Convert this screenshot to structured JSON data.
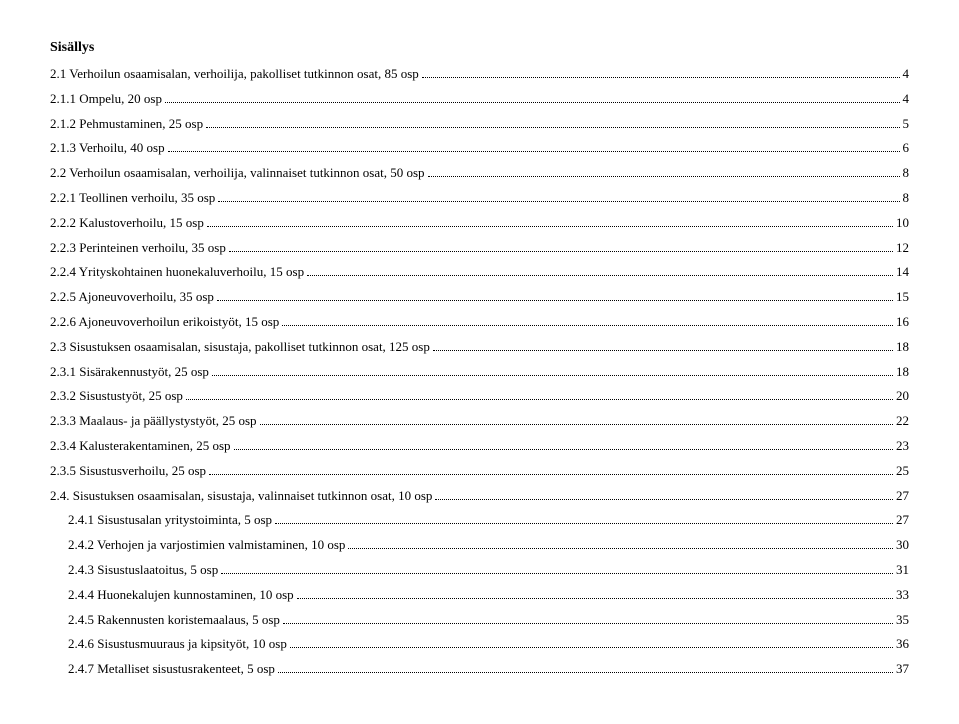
{
  "heading": "Sisällys",
  "toc": [
    {
      "label": "2.1 Verhoilun osaamisalan, verhoilija, pakolliset tutkinnon osat, 85 osp",
      "page": "4",
      "indent": 0
    },
    {
      "label": "2.1.1 Ompelu, 20 osp",
      "page": "4",
      "indent": 0
    },
    {
      "label": "2.1.2 Pehmustaminen, 25 osp",
      "page": "5",
      "indent": 0
    },
    {
      "label": "2.1.3 Verhoilu, 40 osp",
      "page": "6",
      "indent": 0
    },
    {
      "label": "2.2 Verhoilun osaamisalan, verhoilija, valinnaiset tutkinnon osat, 50 osp",
      "page": "8",
      "indent": 0
    },
    {
      "label": "2.2.1 Teollinen verhoilu, 35 osp",
      "page": "8",
      "indent": 0
    },
    {
      "label": "2.2.2 Kalustoverhoilu, 15 osp",
      "page": "10",
      "indent": 0
    },
    {
      "label": "2.2.3 Perinteinen verhoilu, 35 osp",
      "page": "12",
      "indent": 0
    },
    {
      "label": "2.2.4 Yrityskohtainen huonekaluverhoilu, 15 osp",
      "page": "14",
      "indent": 0
    },
    {
      "label": "2.2.5 Ajoneuvoverhoilu, 35 osp",
      "page": "15",
      "indent": 0
    },
    {
      "label": "2.2.6 Ajoneuvoverhoilun erikoistyöt, 15 osp",
      "page": "16",
      "indent": 0
    },
    {
      "label": "2.3 Sisustuksen osaamisalan, sisustaja, pakolliset tutkinnon osat, 125 osp",
      "page": "18",
      "indent": 0
    },
    {
      "label": "2.3.1 Sisärakennustyöt, 25 osp",
      "page": "18",
      "indent": 0
    },
    {
      "label": "2.3.2 Sisustustyöt, 25 osp",
      "page": "20",
      "indent": 0
    },
    {
      "label": "2.3.3 Maalaus- ja päällystystyöt, 25 osp",
      "page": "22",
      "indent": 0
    },
    {
      "label": "2.3.4 Kalusterakentaminen, 25 osp",
      "page": "23",
      "indent": 0
    },
    {
      "label": "2.3.5 Sisustusverhoilu, 25 osp",
      "page": "25",
      "indent": 0
    },
    {
      "label": "2.4. Sisustuksen osaamisalan, sisustaja, valinnaiset tutkinnon osat, 10 osp",
      "page": "27",
      "indent": 0
    },
    {
      "label": "2.4.1 Sisustusalan yritystoiminta, 5 osp",
      "page": "27",
      "indent": 1
    },
    {
      "label": "2.4.2 Verhojen ja varjostimien valmistaminen, 10 osp",
      "page": "30",
      "indent": 1
    },
    {
      "label": "2.4.3 Sisustuslaatoitus, 5 osp",
      "page": "31",
      "indent": 1
    },
    {
      "label": "2.4.4 Huonekalujen kunnostaminen, 10 osp",
      "page": "33",
      "indent": 1
    },
    {
      "label": "2.4.5 Rakennusten koristemaalaus, 5 osp",
      "page": "35",
      "indent": 1
    },
    {
      "label": "2.4.6 Sisustusmuuraus ja kipsityöt, 10 osp",
      "page": "36",
      "indent": 1
    },
    {
      "label": "2.4.7 Metalliset sisustusrakenteet, 5 osp",
      "page": "37",
      "indent": 1
    }
  ]
}
